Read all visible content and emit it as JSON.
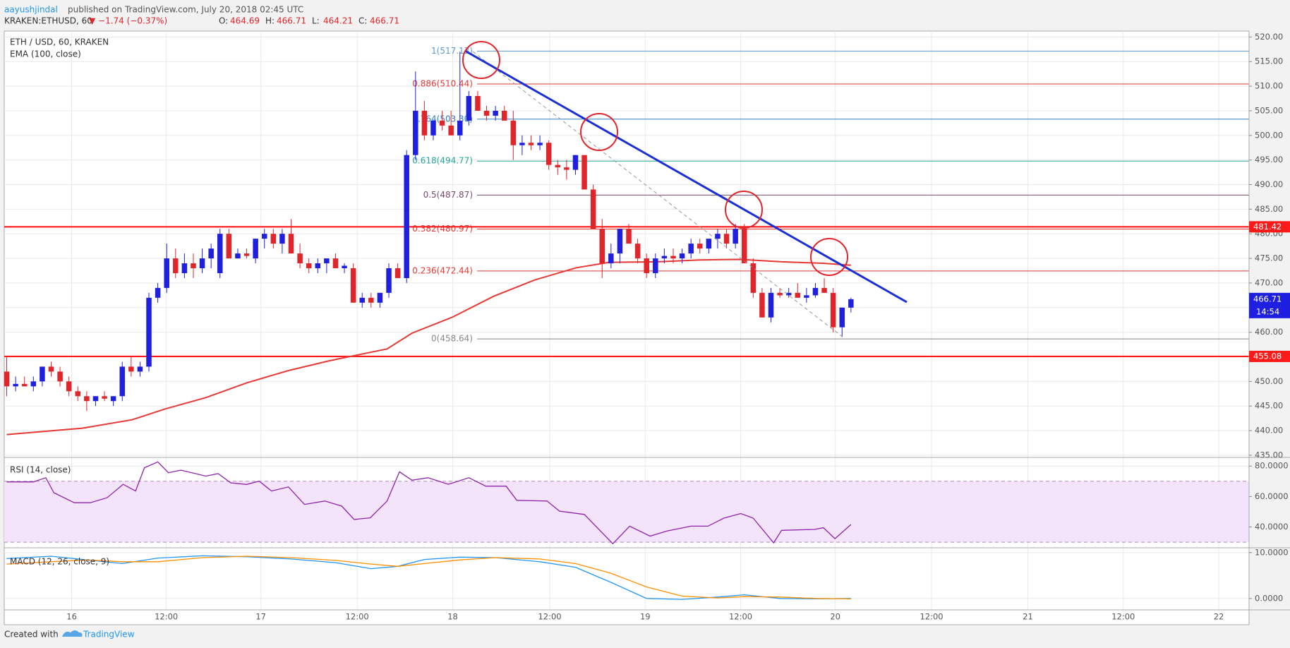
{
  "header": {
    "author": "aayushjindal",
    "published": "published on TradingView.com, July 20, 2018 02:45 UTC",
    "symbol": "KRAKEN:ETHUSD, 60",
    "change": "▼ −1.74 (−0.37%)",
    "ohlc": [
      {
        "k": "O:",
        "v": "464.69"
      },
      {
        "k": "H:",
        "v": "466.71"
      },
      {
        "k": "L:",
        "v": "464.21"
      },
      {
        "k": "C:",
        "v": "466.71"
      }
    ]
  },
  "chart_data": [
    {
      "type": "candlestick",
      "title": "ETH / USD, 60, KRAKEN",
      "up_color": "#1f1fe0",
      "down_color": "#e0262b",
      "x": [
        0,
        1,
        2,
        3,
        4,
        5,
        6,
        7,
        8,
        9,
        10,
        11,
        12,
        13,
        14,
        15,
        16,
        17,
        18,
        19,
        20,
        21,
        22,
        23,
        24,
        25,
        26,
        27,
        28,
        29,
        30,
        31,
        32,
        33,
        34,
        35,
        36,
        37,
        38,
        39,
        40,
        41,
        42,
        43,
        44,
        45,
        46,
        47,
        48,
        49,
        50,
        51,
        52,
        53,
        54,
        55,
        56,
        57,
        58,
        59,
        60,
        61,
        62,
        63,
        64,
        65,
        66,
        67,
        68,
        69,
        70,
        71,
        72,
        73,
        74,
        75,
        76,
        77,
        78,
        79,
        80,
        81,
        82,
        83,
        84,
        85,
        86,
        87,
        88,
        89,
        90,
        91,
        92,
        93,
        94,
        95
      ],
      "open": [
        452,
        449,
        449.5,
        449,
        450,
        453,
        452,
        450,
        448,
        447,
        446,
        447,
        446,
        447,
        453,
        452,
        453,
        467,
        469,
        475,
        472,
        474,
        473,
        475,
        472,
        480,
        475,
        476,
        475,
        479,
        480,
        478,
        480,
        476,
        474,
        473,
        474,
        475,
        473,
        473,
        466,
        467,
        466,
        468,
        473,
        471,
        496,
        505,
        500,
        503,
        502,
        500,
        503,
        508,
        505,
        504,
        505,
        503,
        498,
        498.5,
        498,
        498.5,
        494,
        493.5,
        493,
        496,
        489,
        481,
        474,
        476,
        481,
        478,
        475,
        472,
        475,
        475.5,
        475,
        476,
        478,
        477,
        479,
        480,
        478,
        481,
        474,
        468,
        463,
        468,
        467.5,
        468,
        467,
        467.5,
        469,
        468,
        461,
        465
      ],
      "high": [
        455,
        451,
        451,
        451,
        453,
        454,
        453,
        451,
        449,
        448,
        447,
        448,
        447,
        454,
        455,
        454,
        468,
        470,
        478,
        477,
        476,
        476,
        477,
        478,
        481,
        481,
        477,
        477,
        479,
        481,
        481,
        481,
        483,
        478,
        475,
        475,
        475,
        476,
        474,
        474,
        468,
        468,
        468,
        474,
        474,
        497,
        513,
        507,
        503,
        505,
        505,
        517,
        509,
        509,
        506,
        506,
        506,
        505,
        500,
        500,
        500,
        499,
        495,
        495,
        496,
        496,
        490,
        483,
        478,
        481,
        482,
        479,
        476,
        476,
        477,
        477,
        477,
        479,
        479,
        479,
        481,
        481,
        482,
        482,
        475,
        469,
        469,
        469,
        469,
        470,
        469,
        470,
        471,
        469,
        465,
        467
      ],
      "low": [
        447,
        448,
        449,
        448,
        449,
        451,
        449,
        447,
        446,
        444,
        445,
        446,
        445,
        446,
        451,
        451,
        452,
        466,
        468,
        471,
        471,
        471,
        472,
        473,
        471,
        475,
        475,
        475,
        474,
        477,
        477,
        476,
        476,
        473,
        472,
        472,
        472,
        473,
        472,
        466,
        465,
        465,
        465,
        467,
        471,
        470,
        495,
        499,
        499,
        501,
        500,
        499,
        502,
        505,
        503,
        503,
        503,
        495,
        496,
        497,
        497,
        493,
        492,
        491,
        492,
        489,
        481,
        471,
        473,
        474,
        478,
        474,
        471,
        471,
        474,
        474,
        474,
        475,
        476,
        476,
        477,
        477,
        477,
        474,
        467,
        463,
        462,
        467,
        467,
        467,
        466,
        467,
        468,
        460,
        459,
        464
      ],
      "close": [
        449,
        449.5,
        449,
        450,
        453,
        452,
        450,
        448,
        447,
        446,
        447,
        446.5,
        447,
        453,
        452,
        453,
        467,
        469,
        475,
        472,
        474,
        473,
        475,
        477,
        480,
        475,
        476,
        475.5,
        479,
        480,
        478,
        480,
        476,
        474,
        473,
        474,
        475,
        473,
        473.5,
        466,
        467,
        466,
        468,
        473,
        471,
        496,
        505,
        500,
        503,
        502,
        500,
        503,
        508,
        505,
        504,
        505,
        503,
        498,
        498.5,
        498,
        498.5,
        494,
        493.5,
        493,
        496,
        489,
        481,
        474,
        476,
        481,
        478,
        475,
        472,
        475,
        475.5,
        475,
        476,
        478,
        477,
        479,
        480,
        478,
        481,
        474,
        468,
        463,
        468,
        467.5,
        468,
        467,
        467.5,
        469,
        468,
        461,
        465,
        466.71
      ],
      "series": [
        {
          "name": "EMA (100, close)",
          "color": "#e53935",
          "x": [
            0,
            8.5,
            14.1,
            17.8,
            22.4,
            27,
            31.7,
            36.3,
            40.9,
            42.8,
            45.6,
            50.2,
            54.8,
            59.4,
            64.1,
            67.8,
            73.3,
            78,
            82.6,
            87.2,
            91.9,
            95
          ],
          "values": [
            439.2,
            440.5,
            442.2,
            444.4,
            446.7,
            449.7,
            452.2,
            454.2,
            455.9,
            456.6,
            459.8,
            463.1,
            467.3,
            470.6,
            473.1,
            474.2,
            474.3,
            474.7,
            474.8,
            474.3,
            474,
            473.6
          ]
        }
      ],
      "fib_levels": [
        {
          "label": "1(517.13)",
          "value": 517.13,
          "color": "#5b9bd5"
        },
        {
          "label": "0.886(510.44)",
          "value": 510.44,
          "color": "#e53935"
        },
        {
          "label": "0.764(503.30)",
          "value": 503.3,
          "color": "#2f7fc1"
        },
        {
          "label": "0.618(494.77)",
          "value": 494.77,
          "color": "#26a69a"
        },
        {
          "label": "0.5(487.87)",
          "value": 487.87,
          "color": "#7b4a6b"
        },
        {
          "label": "0.382(480.97)",
          "value": 480.97,
          "color": "#e53935"
        },
        {
          "label": "0.236(472.44)",
          "value": 472.44,
          "color": "#e53935"
        },
        {
          "label": "0(458.64)",
          "value": 458.64,
          "color": "#888888"
        }
      ],
      "levels": [
        {
          "value": 481.42,
          "color": "#ff1a1a"
        },
        {
          "value": 455.08,
          "color": "#ff1a1a"
        }
      ],
      "last_price": 466.71,
      "countdown": "14:54",
      "last_color": "#1f1fe0",
      "ylim": [
        434.7,
        521.2
      ],
      "yticks": [
        {
          "value": 435,
          "label": "435.00"
        },
        {
          "value": 440,
          "label": "440.00"
        },
        {
          "value": 445,
          "label": "445.00"
        },
        {
          "value": 450,
          "label": "450.00"
        },
        {
          "value": 455,
          "label": "455.00"
        },
        {
          "value": 460,
          "label": "460.00"
        },
        {
          "value": 465,
          "label": "465.00"
        },
        {
          "value": 470,
          "label": "470.00"
        },
        {
          "value": 475,
          "label": "475.00"
        },
        {
          "value": 480,
          "label": "480.00"
        },
        {
          "value": 485,
          "label": "485.00"
        },
        {
          "value": 490,
          "label": "490.00"
        },
        {
          "value": 495,
          "label": "495.00"
        },
        {
          "value": 500,
          "label": "500.00"
        },
        {
          "value": 505,
          "label": "505.00"
        },
        {
          "value": 510,
          "label": "510.00"
        },
        {
          "value": 515,
          "label": "515.00"
        },
        {
          "value": 520,
          "label": "520.00"
        }
      ],
      "xlim": [
        -0.28,
        139.8
      ],
      "xticks": [
        {
          "value": 7.31,
          "label": "16"
        },
        {
          "value": 17.96,
          "label": "12:00"
        },
        {
          "value": 28.6,
          "label": "17"
        },
        {
          "value": 39.44,
          "label": "12:00"
        },
        {
          "value": 50.19,
          "label": "18"
        },
        {
          "value": 61.11,
          "label": "12:00"
        },
        {
          "value": 71.85,
          "label": "19"
        },
        {
          "value": 82.59,
          "label": "12:00"
        },
        {
          "value": 93.24,
          "label": "20"
        },
        {
          "value": 104.07,
          "label": "12:00"
        },
        {
          "value": 114.91,
          "label": "21"
        },
        {
          "value": 125.65,
          "label": "12:00"
        },
        {
          "value": 136.39,
          "label": "22"
        }
      ],
      "grid": true
    },
    {
      "type": "line",
      "title": "RSI (14, close)",
      "band": [
        30,
        70
      ],
      "band_color": "#f3e3fb",
      "series": [
        {
          "color": "#8e24aa",
          "x": [
            0,
            3,
            4.4,
            5.3,
            7.6,
            9.4,
            11.3,
            13.1,
            14.5,
            15.5,
            17,
            18.2,
            19.6,
            22.4,
            23.8,
            25.2,
            27,
            28.4,
            29.8,
            31.7,
            33.5,
            35.8,
            37.7,
            39.1,
            40.9,
            42.8,
            44.2,
            45.6,
            47.4,
            49.7,
            52,
            53.9,
            56.2,
            57.4,
            60.8,
            62.2,
            65,
            68.2,
            70.1,
            72.4,
            74.3,
            77,
            78.9,
            80.7,
            82.6,
            84,
            86.3,
            87.2,
            90.9,
            91.9,
            93.2,
            95
          ],
          "values": [
            69.6,
            69.6,
            72.3,
            62.5,
            55.9,
            55.9,
            59.2,
            68,
            63.6,
            78.9,
            82.7,
            75.6,
            77.3,
            73.4,
            75,
            69,
            67.9,
            70.1,
            63.6,
            66.3,
            54.8,
            57,
            53.7,
            44.9,
            46,
            57,
            76.2,
            70.7,
            72.3,
            68,
            72.3,
            66.8,
            66.8,
            57.5,
            57,
            50.4,
            48.2,
            29,
            40.5,
            34,
            37.3,
            40.5,
            40.5,
            45.8,
            48.8,
            45.8,
            29.6,
            37.8,
            38.4,
            39.5,
            32.3,
            41.6
          ]
        }
      ],
      "ylim": [
        26.8,
        85.2
      ],
      "yticks": [
        {
          "value": 40,
          "label": "40.0000"
        },
        {
          "value": 60,
          "label": "60.0000"
        },
        {
          "value": 80,
          "label": "80.0000"
        }
      ]
    },
    {
      "type": "line",
      "title": "MACD (12, 26, close, 9)",
      "series": [
        {
          "color": "#2196f3",
          "x": [
            0,
            5,
            9,
            13,
            17,
            22,
            27,
            32,
            37,
            41,
            44,
            47,
            51,
            55,
            60,
            64,
            68,
            72,
            76,
            80,
            83,
            87,
            91,
            95
          ],
          "values": [
            8.7,
            9.2,
            8.4,
            7.6,
            8.8,
            9.3,
            9.1,
            8.6,
            7.8,
            6.5,
            7,
            8.5,
            9,
            8.9,
            8,
            6.8,
            3.5,
            0,
            -0.2,
            0.3,
            0.8,
            0,
            -0.1,
            0
          ]
        },
        {
          "color": "#ff8f00",
          "x": [
            0,
            5,
            9,
            13,
            17,
            22,
            27,
            32,
            37,
            41,
            44,
            47,
            51,
            55,
            60,
            64,
            68,
            72,
            76,
            80,
            83,
            87,
            91,
            95
          ],
          "values": [
            7.5,
            8,
            8.4,
            8,
            8,
            8.9,
            9.2,
            8.9,
            8.3,
            7.5,
            7,
            7.6,
            8.4,
            8.9,
            8.6,
            7.6,
            5.5,
            2.5,
            0.5,
            0.1,
            0.4,
            0.3,
            0,
            -0.1
          ]
        }
      ],
      "ylim": [
        -2.5,
        10.9
      ],
      "yticks": [
        {
          "value": 0,
          "label": "0.0000"
        },
        {
          "value": 10,
          "label": "10.0000"
        }
      ]
    }
  ],
  "footer": {
    "created": "Created with",
    "brand": "TradingView"
  }
}
